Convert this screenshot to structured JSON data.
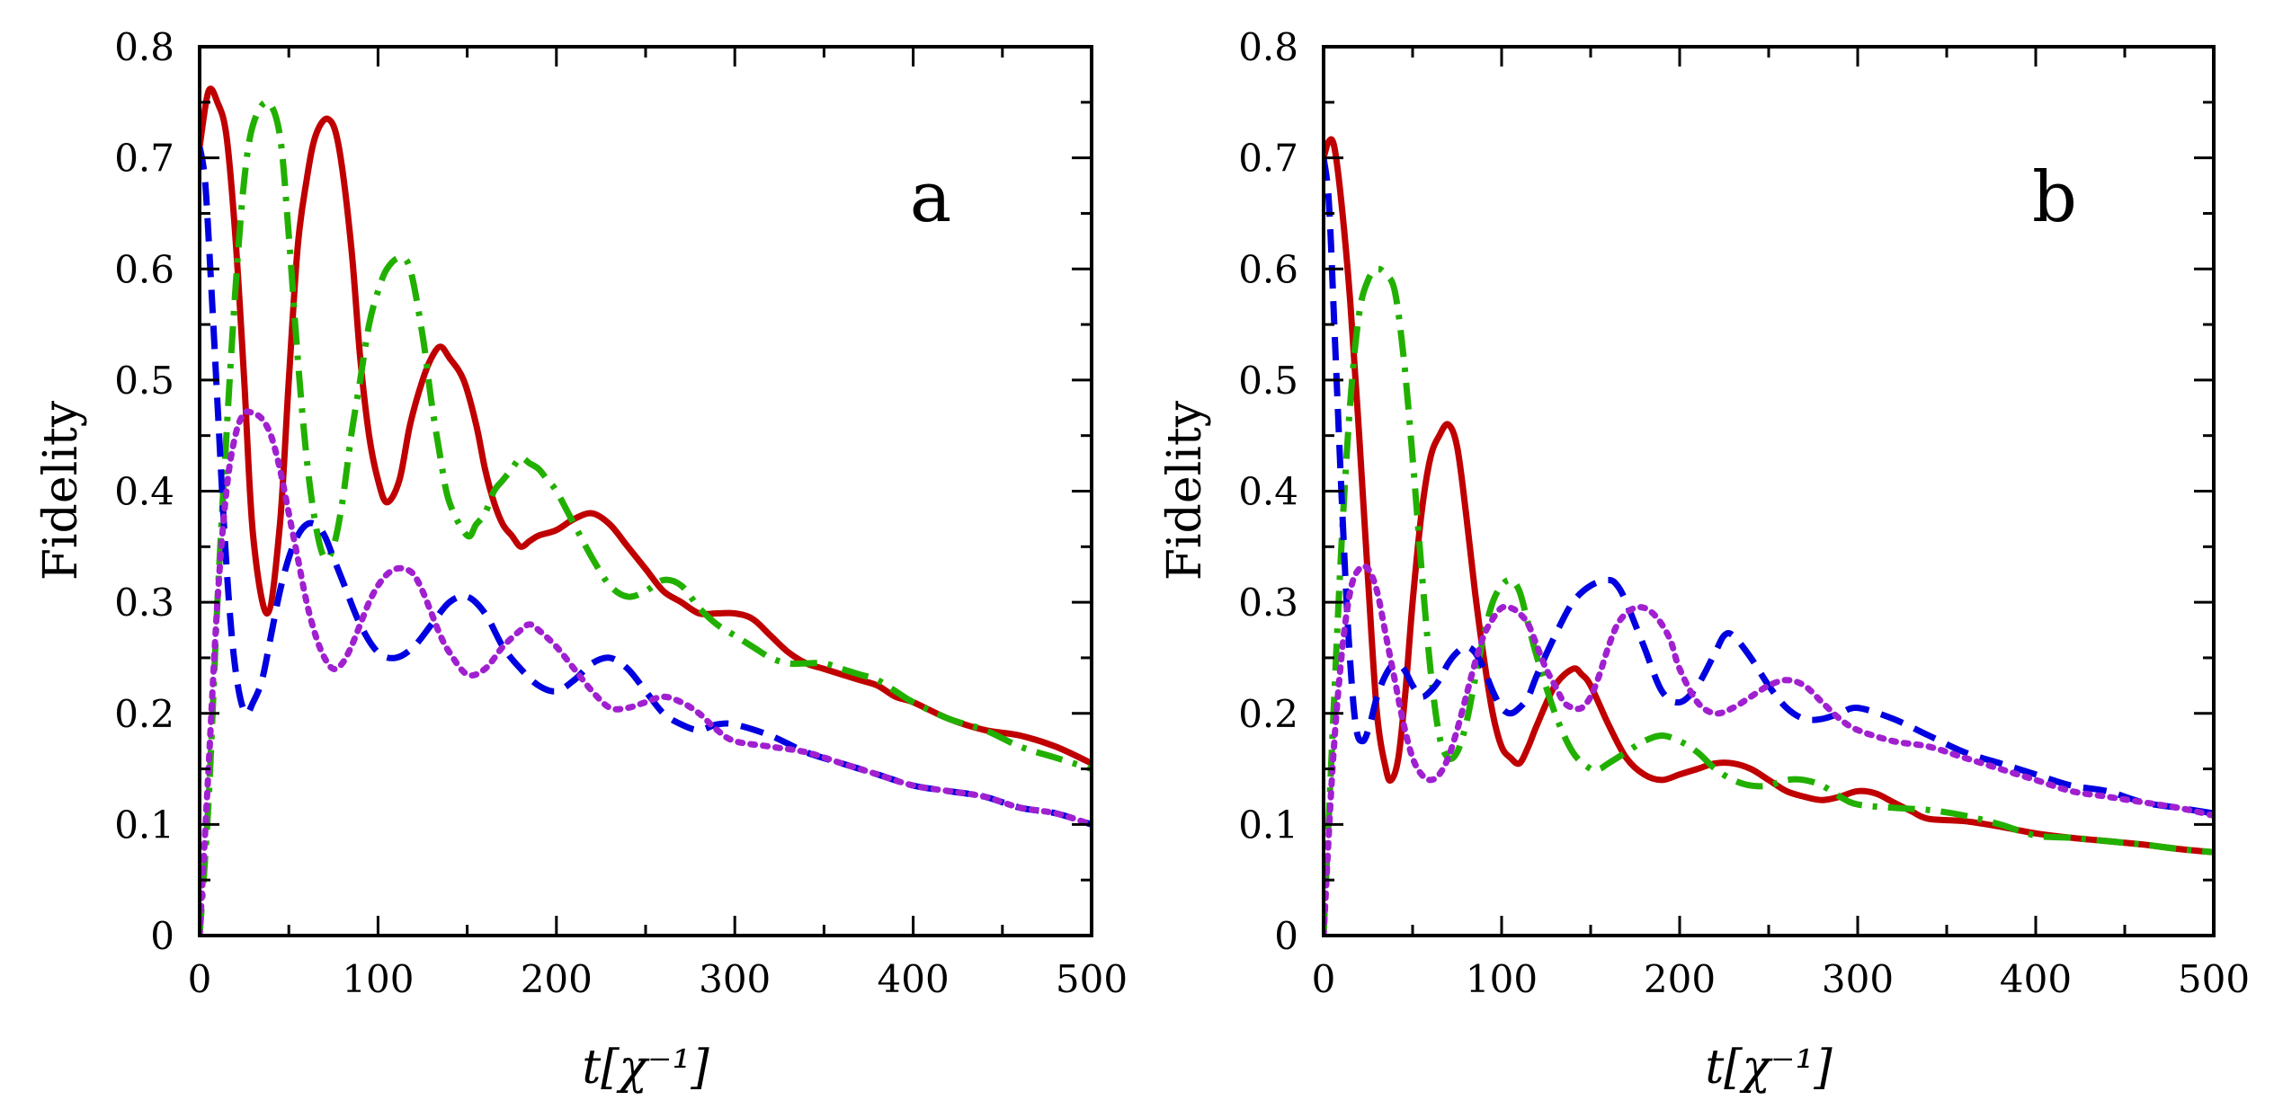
{
  "chart_data": [
    {
      "type": "line",
      "panel_label": "a",
      "xlabel": "t[χ⁻¹]",
      "ylabel": "Fidelity",
      "xlim": [
        0,
        500
      ],
      "ylim": [
        0,
        0.8
      ],
      "xticks": [
        "0",
        "100",
        "200",
        "300",
        "400",
        "500"
      ],
      "yticks": [
        "0",
        "0.1",
        "0.2",
        "0.3",
        "0.4",
        "0.5",
        "0.6",
        "0.7",
        "0.8"
      ],
      "grid": false,
      "series": [
        {
          "color": "#c00000",
          "dash": "solid",
          "x": [
            0,
            5,
            10,
            15,
            20,
            25,
            30,
            38,
            45,
            50,
            55,
            60,
            65,
            72,
            78,
            85,
            90,
            95,
            100,
            105,
            112,
            118,
            125,
            130,
            135,
            140,
            148,
            155,
            160,
            165,
            170,
            175,
            180,
            185,
            190,
            200,
            210,
            220,
            230,
            240,
            250,
            260,
            270,
            280,
            290,
            300,
            310,
            320,
            330,
            340,
            350,
            360,
            370,
            380,
            390,
            400,
            420,
            440,
            460,
            480,
            500
          ],
          "y": [
            0.71,
            0.76,
            0.75,
            0.72,
            0.63,
            0.5,
            0.36,
            0.29,
            0.37,
            0.5,
            0.62,
            0.68,
            0.72,
            0.735,
            0.71,
            0.62,
            0.52,
            0.45,
            0.41,
            0.39,
            0.41,
            0.46,
            0.5,
            0.52,
            0.53,
            0.52,
            0.5,
            0.46,
            0.42,
            0.39,
            0.37,
            0.36,
            0.35,
            0.355,
            0.36,
            0.365,
            0.375,
            0.38,
            0.37,
            0.35,
            0.33,
            0.31,
            0.3,
            0.29,
            0.29,
            0.29,
            0.285,
            0.27,
            0.255,
            0.245,
            0.24,
            0.235,
            0.23,
            0.225,
            0.215,
            0.21,
            0.195,
            0.185,
            0.18,
            0.17,
            0.155
          ]
        },
        {
          "color": "#22b000",
          "dash": "dashdot",
          "x": [
            0,
            5,
            10,
            15,
            20,
            25,
            30,
            38,
            45,
            50,
            55,
            60,
            65,
            70,
            75,
            80,
            85,
            90,
            95,
            100,
            105,
            112,
            118,
            125,
            130,
            135,
            140,
            150,
            155,
            160,
            165,
            170,
            175,
            180,
            185,
            190,
            195,
            200,
            210,
            220,
            230,
            240,
            250,
            260,
            270,
            280,
            290,
            300,
            310,
            320,
            330,
            340,
            350,
            360,
            370,
            380,
            390,
            400,
            420,
            440,
            460,
            480,
            500
          ],
          "y": [
            0.0,
            0.12,
            0.3,
            0.45,
            0.58,
            0.68,
            0.73,
            0.75,
            0.72,
            0.63,
            0.52,
            0.43,
            0.37,
            0.34,
            0.35,
            0.39,
            0.45,
            0.5,
            0.55,
            0.58,
            0.6,
            0.61,
            0.6,
            0.54,
            0.48,
            0.43,
            0.39,
            0.36,
            0.37,
            0.38,
            0.4,
            0.41,
            0.42,
            0.43,
            0.425,
            0.42,
            0.41,
            0.4,
            0.37,
            0.34,
            0.315,
            0.305,
            0.31,
            0.32,
            0.315,
            0.295,
            0.28,
            0.27,
            0.26,
            0.25,
            0.245,
            0.245,
            0.245,
            0.24,
            0.235,
            0.23,
            0.22,
            0.21,
            0.195,
            0.185,
            0.17,
            0.16,
            0.15
          ]
        },
        {
          "color": "#0000e0",
          "dash": "dashed",
          "x": [
            0,
            3,
            6,
            10,
            14,
            18,
            22,
            26,
            30,
            35,
            40,
            45,
            50,
            55,
            60,
            65,
            70,
            75,
            80,
            90,
            100,
            110,
            120,
            130,
            140,
            150,
            160,
            170,
            180,
            190,
            200,
            210,
            220,
            230,
            240,
            250,
            260,
            270,
            280,
            290,
            300,
            320,
            340,
            360,
            380,
            400,
            420,
            440,
            460,
            480,
            500
          ],
          "y": [
            0.71,
            0.68,
            0.6,
            0.48,
            0.36,
            0.27,
            0.22,
            0.2,
            0.21,
            0.23,
            0.27,
            0.31,
            0.34,
            0.36,
            0.37,
            0.37,
            0.36,
            0.34,
            0.32,
            0.28,
            0.255,
            0.25,
            0.26,
            0.28,
            0.3,
            0.305,
            0.29,
            0.26,
            0.24,
            0.225,
            0.22,
            0.23,
            0.245,
            0.25,
            0.24,
            0.22,
            0.2,
            0.19,
            0.185,
            0.19,
            0.19,
            0.18,
            0.165,
            0.155,
            0.145,
            0.135,
            0.13,
            0.125,
            0.115,
            0.11,
            0.1
          ]
        },
        {
          "color": "#a020d0",
          "dash": "dotted",
          "x": [
            0,
            5,
            10,
            15,
            20,
            25,
            30,
            35,
            40,
            45,
            50,
            55,
            60,
            65,
            70,
            75,
            80,
            85,
            90,
            95,
            100,
            105,
            110,
            115,
            120,
            125,
            130,
            135,
            140,
            150,
            160,
            170,
            180,
            185,
            190,
            200,
            210,
            220,
            230,
            240,
            250,
            260,
            270,
            280,
            290,
            300,
            320,
            340,
            360,
            380,
            400,
            420,
            440,
            460,
            480,
            500
          ],
          "y": [
            0.0,
            0.15,
            0.3,
            0.4,
            0.45,
            0.47,
            0.47,
            0.465,
            0.45,
            0.42,
            0.38,
            0.34,
            0.3,
            0.27,
            0.25,
            0.24,
            0.245,
            0.26,
            0.28,
            0.3,
            0.315,
            0.325,
            0.33,
            0.33,
            0.325,
            0.31,
            0.29,
            0.27,
            0.255,
            0.235,
            0.24,
            0.26,
            0.275,
            0.28,
            0.275,
            0.26,
            0.24,
            0.22,
            0.205,
            0.205,
            0.21,
            0.215,
            0.21,
            0.2,
            0.185,
            0.175,
            0.17,
            0.165,
            0.155,
            0.145,
            0.135,
            0.13,
            0.125,
            0.115,
            0.11,
            0.1
          ]
        }
      ]
    },
    {
      "type": "line",
      "panel_label": "b",
      "xlabel": "t[χ⁻¹]",
      "ylabel": "Fidelity",
      "xlim": [
        0,
        500
      ],
      "ylim": [
        0,
        0.8
      ],
      "xticks": [
        "0",
        "100",
        "200",
        "300",
        "400",
        "500"
      ],
      "yticks": [
        "0",
        "0.1",
        "0.2",
        "0.3",
        "0.4",
        "0.5",
        "0.6",
        "0.7",
        "0.8"
      ],
      "grid": false,
      "series": [
        {
          "color": "#c00000",
          "dash": "solid",
          "x": [
            0,
            3,
            6,
            10,
            15,
            20,
            25,
            30,
            35,
            38,
            42,
            46,
            50,
            55,
            60,
            65,
            70,
            75,
            80,
            85,
            90,
            95,
            100,
            105,
            110,
            115,
            120,
            130,
            140,
            145,
            150,
            160,
            170,
            180,
            190,
            200,
            210,
            220,
            230,
            240,
            250,
            260,
            270,
            280,
            290,
            300,
            310,
            320,
            330,
            340,
            360,
            380,
            400,
            420,
            440,
            460,
            480,
            500
          ],
          "y": [
            0.7,
            0.715,
            0.71,
            0.66,
            0.57,
            0.45,
            0.32,
            0.2,
            0.15,
            0.14,
            0.16,
            0.22,
            0.3,
            0.38,
            0.43,
            0.45,
            0.46,
            0.44,
            0.38,
            0.31,
            0.25,
            0.2,
            0.17,
            0.16,
            0.155,
            0.17,
            0.19,
            0.225,
            0.24,
            0.235,
            0.225,
            0.19,
            0.16,
            0.145,
            0.14,
            0.145,
            0.15,
            0.155,
            0.155,
            0.15,
            0.14,
            0.13,
            0.125,
            0.122,
            0.125,
            0.13,
            0.128,
            0.12,
            0.112,
            0.105,
            0.103,
            0.098,
            0.092,
            0.088,
            0.085,
            0.082,
            0.078,
            0.075
          ]
        },
        {
          "color": "#22b000",
          "dash": "dashdot",
          "x": [
            0,
            5,
            10,
            15,
            20,
            25,
            30,
            35,
            40,
            45,
            50,
            55,
            60,
            65,
            70,
            75,
            80,
            85,
            90,
            95,
            100,
            105,
            110,
            115,
            120,
            130,
            140,
            150,
            155,
            160,
            170,
            180,
            190,
            200,
            210,
            220,
            230,
            240,
            250,
            260,
            270,
            280,
            290,
            300,
            320,
            340,
            360,
            380,
            400,
            420,
            440,
            460,
            480,
            500
          ],
          "y": [
            0.0,
            0.18,
            0.35,
            0.48,
            0.56,
            0.59,
            0.6,
            0.595,
            0.58,
            0.52,
            0.43,
            0.33,
            0.24,
            0.18,
            0.16,
            0.165,
            0.19,
            0.23,
            0.27,
            0.3,
            0.315,
            0.32,
            0.31,
            0.28,
            0.25,
            0.2,
            0.165,
            0.15,
            0.15,
            0.155,
            0.165,
            0.175,
            0.18,
            0.175,
            0.165,
            0.15,
            0.14,
            0.135,
            0.135,
            0.14,
            0.14,
            0.135,
            0.125,
            0.118,
            0.115,
            0.113,
            0.108,
            0.1,
            0.09,
            0.088,
            0.085,
            0.082,
            0.078,
            0.075
          ]
        },
        {
          "color": "#0000e0",
          "dash": "dashed",
          "x": [
            0,
            3,
            6,
            10,
            14,
            18,
            22,
            26,
            30,
            35,
            40,
            45,
            50,
            55,
            60,
            65,
            70,
            75,
            80,
            85,
            90,
            95,
            100,
            105,
            110,
            115,
            120,
            130,
            140,
            150,
            160,
            165,
            170,
            180,
            190,
            200,
            210,
            220,
            225,
            230,
            240,
            250,
            260,
            270,
            280,
            290,
            300,
            320,
            340,
            360,
            380,
            400,
            420,
            440,
            460,
            480,
            500
          ],
          "y": [
            0.7,
            0.66,
            0.55,
            0.4,
            0.27,
            0.19,
            0.175,
            0.19,
            0.215,
            0.235,
            0.245,
            0.24,
            0.225,
            0.215,
            0.22,
            0.23,
            0.245,
            0.255,
            0.26,
            0.255,
            0.24,
            0.22,
            0.205,
            0.2,
            0.205,
            0.215,
            0.235,
            0.27,
            0.3,
            0.315,
            0.32,
            0.315,
            0.3,
            0.26,
            0.22,
            0.21,
            0.225,
            0.255,
            0.27,
            0.27,
            0.25,
            0.225,
            0.205,
            0.195,
            0.195,
            0.2,
            0.205,
            0.195,
            0.18,
            0.165,
            0.155,
            0.145,
            0.135,
            0.13,
            0.12,
            0.115,
            0.11
          ]
        },
        {
          "color": "#a020d0",
          "dash": "dotted",
          "x": [
            0,
            5,
            10,
            15,
            20,
            25,
            30,
            35,
            40,
            45,
            50,
            55,
            60,
            65,
            70,
            75,
            80,
            85,
            90,
            95,
            100,
            105,
            110,
            115,
            120,
            125,
            130,
            135,
            140,
            145,
            150,
            155,
            160,
            165,
            170,
            175,
            180,
            185,
            190,
            195,
            200,
            210,
            220,
            230,
            240,
            250,
            260,
            270,
            280,
            290,
            300,
            320,
            340,
            360,
            380,
            400,
            420,
            440,
            460,
            480,
            500
          ],
          "y": [
            0.0,
            0.15,
            0.25,
            0.31,
            0.33,
            0.33,
            0.31,
            0.27,
            0.23,
            0.19,
            0.16,
            0.145,
            0.14,
            0.145,
            0.16,
            0.185,
            0.215,
            0.245,
            0.27,
            0.285,
            0.295,
            0.295,
            0.29,
            0.28,
            0.26,
            0.24,
            0.225,
            0.21,
            0.205,
            0.205,
            0.215,
            0.235,
            0.26,
            0.28,
            0.29,
            0.295,
            0.295,
            0.29,
            0.28,
            0.265,
            0.24,
            0.21,
            0.2,
            0.205,
            0.215,
            0.225,
            0.23,
            0.225,
            0.21,
            0.195,
            0.185,
            0.175,
            0.17,
            0.16,
            0.15,
            0.14,
            0.13,
            0.125,
            0.12,
            0.115,
            0.108
          ]
        }
      ]
    }
  ]
}
